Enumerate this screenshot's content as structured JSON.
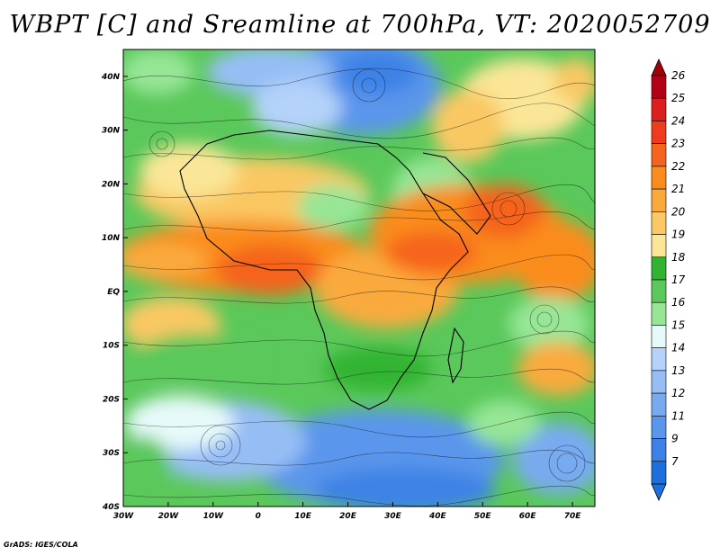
{
  "title": "WBPT [C] and Sreamline at 700hPa, VT: 2020052709",
  "credit": "GrADS: IGES/COLA",
  "map": {
    "lon_range": [
      -30,
      75
    ],
    "lat_range": [
      -40,
      45
    ],
    "lon_ticks": [
      {
        "lon": -30,
        "label": "30W"
      },
      {
        "lon": -20,
        "label": "20W"
      },
      {
        "lon": -10,
        "label": "10W"
      },
      {
        "lon": 0,
        "label": "0"
      },
      {
        "lon": 10,
        "label": "10E"
      },
      {
        "lon": 20,
        "label": "20E"
      },
      {
        "lon": 30,
        "label": "30E"
      },
      {
        "lon": 40,
        "label": "40E"
      },
      {
        "lon": 50,
        "label": "50E"
      },
      {
        "lon": 60,
        "label": "60E"
      },
      {
        "lon": 70,
        "label": "70E"
      }
    ],
    "lat_ticks": [
      {
        "lat": 40,
        "label": "40N"
      },
      {
        "lat": 30,
        "label": "30N"
      },
      {
        "lat": 20,
        "label": "20N"
      },
      {
        "lat": 10,
        "label": "10N"
      },
      {
        "lat": 0,
        "label": "EQ"
      },
      {
        "lat": -10,
        "label": "10S"
      },
      {
        "lat": -20,
        "label": "20S"
      },
      {
        "lat": -30,
        "label": "30S"
      },
      {
        "lat": -40,
        "label": "40S"
      }
    ]
  },
  "colorbar": {
    "top_arrow_color": "#a0000a",
    "bottom_arrow_color": "#1e6edc",
    "bins": [
      {
        "label": "26",
        "color": "#b40014"
      },
      {
        "label": "25",
        "color": "#dc1e1e"
      },
      {
        "label": "24",
        "color": "#f03c1e"
      },
      {
        "label": "23",
        "color": "#f5641e"
      },
      {
        "label": "22",
        "color": "#fa8c1e"
      },
      {
        "label": "21",
        "color": "#faaa3c"
      },
      {
        "label": "20",
        "color": "#fac864"
      },
      {
        "label": "19",
        "color": "#fae696"
      },
      {
        "label": "18",
        "color": "#32b432"
      },
      {
        "label": "17",
        "color": "#5ac85a"
      },
      {
        "label": "16",
        "color": "#96e696"
      },
      {
        "label": "15",
        "color": "#e6fafa"
      },
      {
        "label": "14",
        "color": "#b4d2fa"
      },
      {
        "label": "13",
        "color": "#96bef5"
      },
      {
        "label": "12",
        "color": "#78aaf0"
      },
      {
        "label": "11",
        "color": "#5a96eb"
      },
      {
        "label": "9",
        "color": "#3c82e6"
      },
      {
        "label": "7",
        "color": "#1e6edc"
      }
    ]
  },
  "field_regions": [
    {
      "kind": "fill",
      "name": "north-cool",
      "color": "#78aaf0"
    },
    {
      "kind": "fill",
      "name": "sahel-band",
      "color": "#fac864"
    },
    {
      "kind": "fill",
      "name": "tropical-core",
      "color": "#fa8c1e"
    },
    {
      "kind": "fill",
      "name": "arabian-sea-warm",
      "color": "#f5641e"
    },
    {
      "kind": "fill",
      "name": "southern-cool",
      "color": "#5a96eb"
    }
  ]
}
